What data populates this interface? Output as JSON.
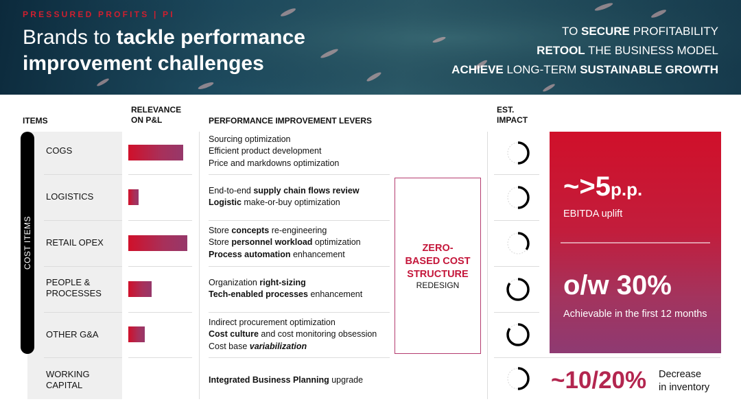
{
  "header": {
    "kicker": "PRESSURED PROFITS | PI",
    "title_plain_1": "Brands to ",
    "title_bold_1": "tackle performance",
    "title_bold_2": "improvement challenges",
    "tagline": [
      {
        "bold": "",
        "plain": "TO ",
        "bold2": "SECURE",
        "plain2": " PROFITABILITY"
      },
      {
        "bold": "RETOOL",
        "plain": " THE BUSINESS MODEL",
        "bold2": "",
        "plain2": ""
      },
      {
        "bold": "ACHIEVE",
        "plain": " LONG-TERM ",
        "bold2": "SUSTAINABLE GROWTH",
        "plain2": ""
      }
    ]
  },
  "columns": {
    "items": "ITEMS",
    "relevance_1": "RELEVANCE",
    "relevance_2": "ON P&L",
    "levers": "PERFORMANCE IMPROVEMENT LEVERS",
    "impact_1": "EST.",
    "impact_2": "IMPACT"
  },
  "cost_items_label": "COST ITEMS",
  "rows": [
    {
      "label_1": "COGS",
      "label_2": "",
      "relevance": 0.93,
      "levers": [
        [
          {
            "t": "Sourcing optimization",
            "b": false
          }
        ],
        [
          {
            "t": "Efficient product development",
            "b": false
          }
        ],
        [
          {
            "t": "Price and markdowns optimization",
            "b": false
          }
        ]
      ],
      "impact": 0.5
    },
    {
      "label_1": "LOGISTICS",
      "label_2": "",
      "relevance": 0.17,
      "levers": [
        [
          {
            "t": "End-to-end ",
            "b": false
          },
          {
            "t": "supply chain flows review",
            "b": true
          }
        ],
        [
          {
            "t": "Logistic",
            "b": true
          },
          {
            "t": " make-or-buy optimization",
            "b": false
          }
        ]
      ],
      "impact": 0.5
    },
    {
      "label_1": "RETAIL OPEX",
      "label_2": "",
      "relevance": 1.0,
      "levers": [
        [
          {
            "t": "Store ",
            "b": false
          },
          {
            "t": "concepts",
            "b": true
          },
          {
            "t": " re-engineering",
            "b": false
          }
        ],
        [
          {
            "t": "Store ",
            "b": false
          },
          {
            "t": "personnel workload",
            "b": true
          },
          {
            "t": " optimization",
            "b": false
          }
        ],
        [
          {
            "t": "Process automation",
            "b": true
          },
          {
            "t": " enhancement",
            "b": false
          }
        ]
      ],
      "impact": 0.35
    },
    {
      "label_1": "PEOPLE &",
      "label_2": "PROCESSES",
      "relevance": 0.4,
      "levers": [
        [
          {
            "t": "Organization ",
            "b": false
          },
          {
            "t": "right-sizing",
            "b": true
          }
        ],
        [
          {
            "t": "Tech-enabled processes",
            "b": true
          },
          {
            "t": " enhancement",
            "b": false
          }
        ]
      ],
      "impact": 0.85
    },
    {
      "label_1": "OTHER G&A",
      "label_2": "",
      "relevance": 0.28,
      "levers": [
        [
          {
            "t": "Indirect procurement optimization",
            "b": false
          }
        ],
        [
          {
            "t": "Cost culture",
            "b": true
          },
          {
            "t": " and cost monitoring obsession",
            "b": false
          }
        ],
        [
          {
            "t": "Cost base ",
            "b": false
          },
          {
            "t": "variabilization",
            "b": true,
            "i": true
          }
        ]
      ],
      "impact": 0.85
    },
    {
      "label_1": "WORKING",
      "label_2": "CAPITAL",
      "relevance": 0,
      "levers": [
        [
          {
            "t": "Integrated Business Planning",
            "b": true
          },
          {
            "t": " upgrade",
            "b": false
          }
        ]
      ],
      "impact": 0.5
    }
  ],
  "zbb": {
    "line_1": "ZERO-",
    "line_2": "BASED COST",
    "line_3": "STRUCTURE",
    "sub": "REDESIGN"
  },
  "impact_panel": {
    "big_1": "~>5",
    "big_1_unit": "p.p.",
    "sub_1": "EBITDA uplift",
    "big_2": "o/w 30%",
    "sub_2": "Achievable in the first 12 months"
  },
  "inventory": {
    "big": "~10/20%",
    "sub_1": "Decrease",
    "sub_2": "in inventory"
  },
  "colors": {
    "accent_red": "#d0102a",
    "accent_magenta": "#96386a",
    "zbb_red": "#c4163a",
    "inventory_color": "#b3264f",
    "header_bg": "#1d4a5e"
  }
}
